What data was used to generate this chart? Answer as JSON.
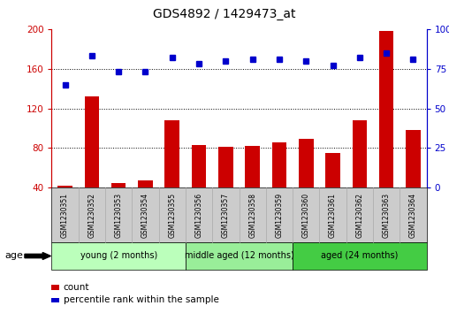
{
  "title": "GDS4892 / 1429473_at",
  "samples": [
    "GSM1230351",
    "GSM1230352",
    "GSM1230353",
    "GSM1230354",
    "GSM1230355",
    "GSM1230356",
    "GSM1230357",
    "GSM1230358",
    "GSM1230359",
    "GSM1230360",
    "GSM1230361",
    "GSM1230362",
    "GSM1230363",
    "GSM1230364"
  ],
  "counts": [
    42,
    132,
    45,
    47,
    108,
    83,
    81,
    82,
    86,
    89,
    75,
    108,
    198,
    98
  ],
  "percentiles": [
    65,
    83,
    73,
    73,
    82,
    78,
    80,
    81,
    81,
    80,
    77,
    82,
    85,
    81
  ],
  "ylim_left": [
    40,
    200
  ],
  "ylim_right": [
    0,
    100
  ],
  "yticks_left": [
    40,
    80,
    120,
    160,
    200
  ],
  "yticks_right": [
    0,
    25,
    50,
    75,
    100
  ],
  "bar_color": "#cc0000",
  "dot_color": "#0000cc",
  "groups": [
    {
      "label": "young (2 months)",
      "start": 0,
      "end": 5,
      "color": "#bbffbb"
    },
    {
      "label": "middle aged (12 months)",
      "start": 5,
      "end": 9,
      "color": "#99ee99"
    },
    {
      "label": "aged (24 months)",
      "start": 9,
      "end": 14,
      "color": "#44cc44"
    }
  ],
  "age_label": "age",
  "legend_count": "count",
  "legend_percentile": "percentile rank within the sample",
  "background_color": "#ffffff",
  "sample_bg_color": "#cccccc"
}
